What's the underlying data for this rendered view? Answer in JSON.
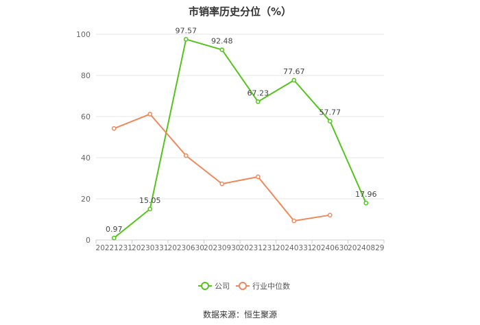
{
  "chart_data": {
    "type": "line",
    "title": "市销率历史分位（%）",
    "categories": [
      "20221231",
      "20230331",
      "20230630",
      "20230930",
      "20231231",
      "20240331",
      "20240630",
      "20240829"
    ],
    "ylim": [
      0,
      100
    ],
    "yticks": [
      0,
      20,
      40,
      60,
      80,
      100
    ],
    "grid": true,
    "legend_position": "bottom",
    "series": [
      {
        "name": "公司",
        "color": "#52c41a",
        "values": [
          0.97,
          15.05,
          97.57,
          92.48,
          67.23,
          77.67,
          57.77,
          17.96
        ],
        "labels": [
          "0.97",
          "15.05",
          "97.57",
          "92.48",
          "67.23",
          "77.67",
          "57.77",
          "17.96"
        ]
      },
      {
        "name": "行业中位数",
        "color": "#f0875a",
        "values": [
          54.2,
          61.2,
          41.0,
          27.3,
          30.7,
          9.3,
          12.1,
          null
        ],
        "labels": null
      }
    ]
  },
  "source_text": "数据来源：恒生聚源"
}
